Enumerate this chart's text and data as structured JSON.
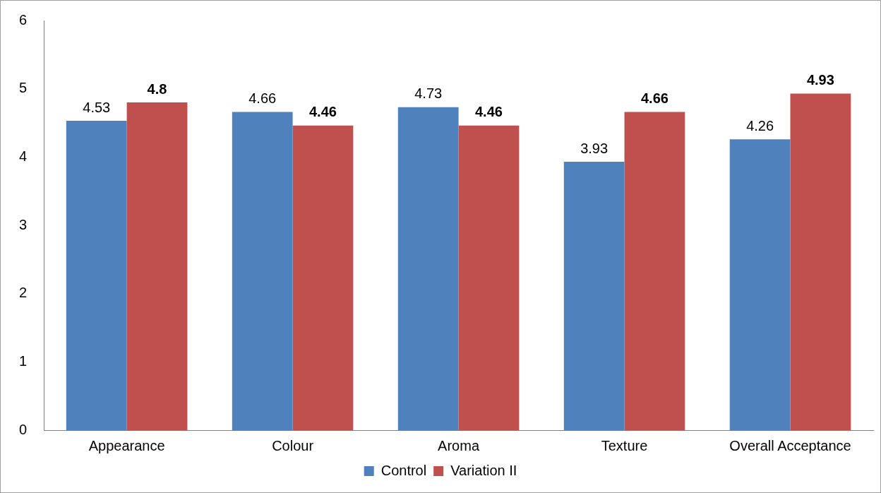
{
  "chart_data": {
    "type": "bar",
    "categories": [
      "Appearance",
      "Colour",
      "Aroma",
      "Texture",
      "Overall Acceptance"
    ],
    "series": [
      {
        "name": "Control",
        "color": "#4f81bd",
        "values": [
          4.53,
          4.66,
          4.73,
          3.93,
          4.26
        ]
      },
      {
        "name": "Variation II",
        "color": "#c0504d",
        "values": [
          4.8,
          4.46,
          4.46,
          4.66,
          4.93
        ]
      }
    ],
    "ylim": [
      0,
      6
    ],
    "yticks": [
      0,
      1,
      2,
      3,
      4,
      5,
      6
    ],
    "grid": false,
    "legend": "bottom",
    "data_labels": true
  }
}
